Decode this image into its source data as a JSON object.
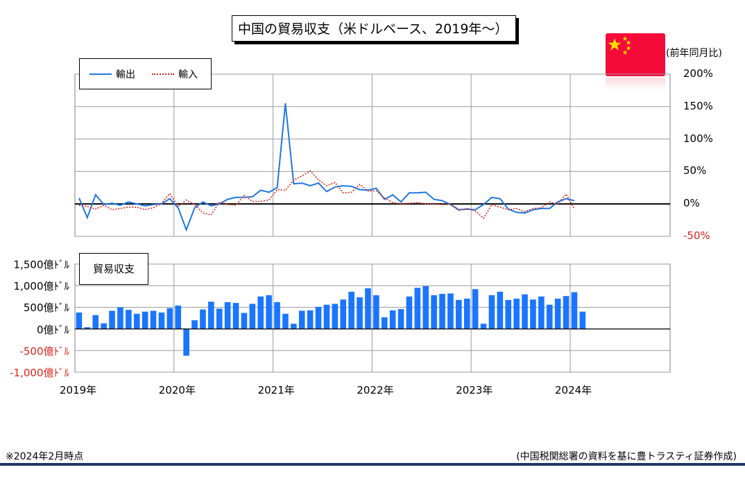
{
  "title": "中国の貿易収支（米ドルベース、2019年～）",
  "unit_label": "(前年同月比)",
  "footnote": "※2024年2月時点",
  "source": "(中国税関総署の資料を基に豊トラスティ証券作成)",
  "colors": {
    "export": "#1f77e0",
    "import": "#d9251c",
    "balance": "#1a75ff",
    "negative_label": "#d9251c",
    "flag": "#f40b3a",
    "star": "#ffde00"
  },
  "chart_data": [
    {
      "type": "line",
      "legend": [
        "輸出",
        "輸入"
      ],
      "legend_position": "top-left",
      "ylim": [
        -50,
        200
      ],
      "y_ticks": [
        "200%",
        "150%",
        "100%",
        "50%",
        "0%",
        "-50%"
      ],
      "x_ticks": [
        "2019年",
        "2020年",
        "2021年",
        "2022年",
        "2023年",
        "2024年"
      ],
      "x_start": "2019-01",
      "series": [
        {
          "name": "輸出",
          "values": [
            9,
            -21,
            14,
            -1,
            1,
            -2,
            3,
            0,
            -3,
            -1,
            0,
            8,
            -6,
            -40,
            -6,
            3,
            -3,
            0,
            7,
            10,
            10,
            11,
            21,
            18,
            25,
            155,
            31,
            32,
            28,
            32,
            19,
            26,
            28,
            27,
            22,
            21,
            24,
            7,
            14,
            3,
            17,
            17,
            18,
            7,
            5,
            -1,
            -9,
            -8,
            -9,
            -1,
            10,
            8,
            -8,
            -13,
            -14,
            -9,
            -7,
            -7,
            3,
            8,
            5
          ]
        },
        {
          "name": "輸入",
          "values": [
            -2,
            -4,
            -8,
            -2,
            -9,
            -7,
            -5,
            -5,
            -9,
            -6,
            1,
            16,
            -4,
            6,
            -1,
            -14,
            -17,
            3,
            -1,
            -2,
            13,
            4,
            4,
            6,
            22,
            21,
            37,
            43,
            51,
            37,
            28,
            33,
            17,
            18,
            30,
            20,
            20,
            9,
            2,
            0,
            1,
            2,
            0,
            0,
            -1,
            -1,
            -10,
            -7,
            -11,
            -22,
            -1,
            -5,
            -9,
            -7,
            -12,
            -7,
            -6,
            3,
            0,
            15,
            -8
          ]
        }
      ]
    },
    {
      "type": "bar",
      "label": "貿易収支",
      "ylim": [
        -1000,
        1500
      ],
      "y_ticks": [
        "1,500億ﾄﾞﾙ",
        "1,000億ﾄﾞﾙ",
        "500億ﾄﾞﾙ",
        "0億ﾄﾞﾙ",
        "-500億ﾄﾞﾙ",
        "-1,000億ﾄﾞﾙ"
      ],
      "x_ticks": [
        "2019年",
        "2020年",
        "2021年",
        "2022年",
        "2023年",
        "2024年"
      ],
      "x_start": "2019-01",
      "series": [
        {
          "name": "貿易収支",
          "values": [
            380,
            40,
            320,
            130,
            420,
            500,
            440,
            350,
            400,
            420,
            380,
            480,
            540,
            -620,
            200,
            450,
            630,
            470,
            620,
            600,
            370,
            580,
            750,
            780,
            620,
            350,
            120,
            420,
            430,
            510,
            560,
            580,
            680,
            860,
            730,
            940,
            780,
            270,
            430,
            460,
            750,
            950,
            990,
            780,
            810,
            820,
            670,
            700,
            920,
            120,
            780,
            860,
            670,
            700,
            800,
            680,
            750,
            560,
            700,
            760,
            850,
            400
          ]
        }
      ]
    }
  ]
}
